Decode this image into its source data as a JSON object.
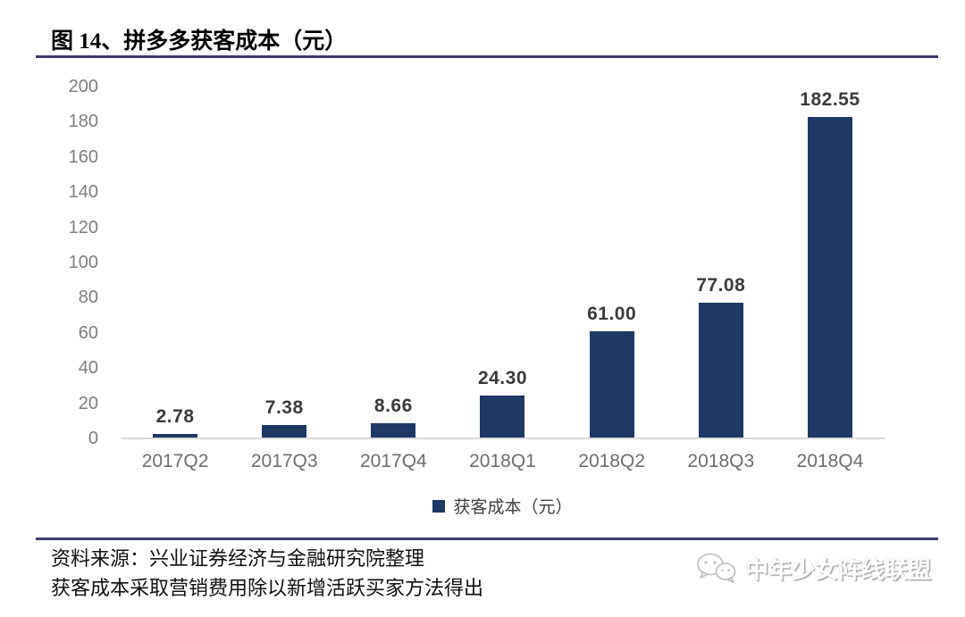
{
  "title": "图 14、拼多多获客成本（元）",
  "chart_data": {
    "type": "bar",
    "categories": [
      "2017Q2",
      "2017Q3",
      "2017Q4",
      "2018Q1",
      "2018Q2",
      "2018Q3",
      "2018Q4"
    ],
    "values": [
      2.78,
      7.38,
      8.66,
      24.3,
      61.0,
      77.08,
      182.55
    ],
    "value_labels": [
      "2.78",
      "7.38",
      "8.66",
      "24.30",
      "61.00",
      "77.08",
      "182.55"
    ],
    "title": "拼多多获客成本（元）",
    "xlabel": "",
    "ylabel": "",
    "ylim": [
      0,
      200
    ],
    "yticks": [
      200,
      180,
      160,
      140,
      120,
      100,
      80,
      60,
      40,
      20,
      0
    ],
    "grid": false,
    "legend_position": "bottom",
    "legend_label": "获客成本（元）",
    "bar_color": "#1F3864"
  },
  "colors": {
    "bar": "#1F3864",
    "separator_line": "#3C3C6E",
    "axis_line": "#D9D9D9",
    "ytick_text": "#7F7F7F",
    "xtick_text": "#6E6E6E",
    "value_text": "#3B3B3B"
  },
  "footer": {
    "source_line": "资料来源：兴业证券经济与金融研究院整理",
    "note_line": "获客成本采取营销费用除以新增活跃买家方法得出"
  },
  "watermark": {
    "icon": "wechat-icon",
    "text": "中年少女阵线联盟"
  }
}
